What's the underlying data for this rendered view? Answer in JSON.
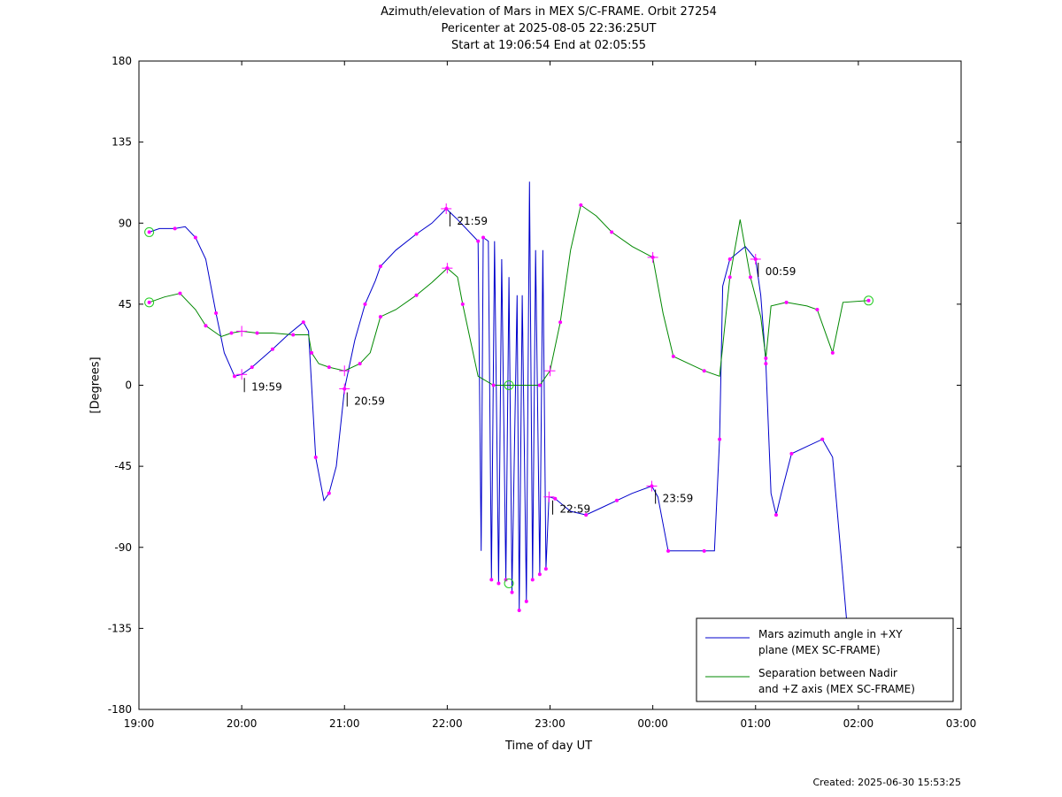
{
  "header": {
    "title_line1": "Azimuth/elevation of Mars in MEX S/C-FRAME.  Orbit 27254",
    "title_line2": "Pericenter at 2025-08-05 22:36:25UT",
    "title_line3": "Start at 19:06:54 End at 02:05:55"
  },
  "footer": {
    "created": "Created: 2025-06-30 15:53:25"
  },
  "chart_data": {
    "type": "line",
    "title": "Azimuth/elevation of Mars in MEX S/C-FRAME.  Orbit 27254",
    "xlabel": "Time of day UT",
    "ylabel": "[Degrees]",
    "xlim_hours": [
      19,
      27
    ],
    "ylim": [
      -180,
      180
    ],
    "x_ticks": [
      "19:00",
      "20:00",
      "21:00",
      "22:00",
      "23:00",
      "00:00",
      "01:00",
      "02:00",
      "03:00"
    ],
    "y_ticks": [
      "180",
      "135",
      "90",
      "45",
      "0",
      "-45",
      "-90",
      "-135",
      "-180"
    ],
    "legend_position": "bottom-right",
    "series": [
      {
        "name": "Mars azimuth angle in +XY plane (MEX SC-FRAME)",
        "legend_line1": "Mars azimuth angle in +XY",
        "legend_line2": "plane (MEX SC-FRAME)",
        "color": "#0000cc",
        "points": [
          [
            19.1,
            85
          ],
          [
            19.2,
            87
          ],
          [
            19.35,
            87
          ],
          [
            19.45,
            88
          ],
          [
            19.55,
            82
          ],
          [
            19.65,
            70
          ],
          [
            19.75,
            40
          ],
          [
            19.83,
            18
          ],
          [
            19.93,
            5
          ],
          [
            20.0,
            6
          ],
          [
            20.1,
            10
          ],
          [
            20.2,
            15
          ],
          [
            20.3,
            20
          ],
          [
            20.45,
            28
          ],
          [
            20.6,
            35
          ],
          [
            20.65,
            30
          ],
          [
            20.72,
            -40
          ],
          [
            20.8,
            -64
          ],
          [
            20.85,
            -60
          ],
          [
            20.92,
            -45
          ],
          [
            21.0,
            -2
          ],
          [
            21.1,
            25
          ],
          [
            21.2,
            45
          ],
          [
            21.3,
            58
          ],
          [
            21.35,
            66
          ],
          [
            21.5,
            75
          ],
          [
            21.7,
            84
          ],
          [
            21.85,
            90
          ],
          [
            21.99,
            98
          ],
          [
            22.1,
            92
          ],
          [
            22.3,
            80
          ],
          [
            22.33,
            -92
          ],
          [
            22.35,
            82
          ],
          [
            22.4,
            80
          ],
          [
            22.43,
            -108
          ],
          [
            22.46,
            80
          ],
          [
            22.5,
            -110
          ],
          [
            22.53,
            70
          ],
          [
            22.57,
            -108
          ],
          [
            22.6,
            60
          ],
          [
            22.63,
            -115
          ],
          [
            22.68,
            50
          ],
          [
            22.7,
            -125
          ],
          [
            22.73,
            50
          ],
          [
            22.77,
            -120
          ],
          [
            22.8,
            113
          ],
          [
            22.83,
            -108
          ],
          [
            22.86,
            75
          ],
          [
            22.9,
            -105
          ],
          [
            22.93,
            75
          ],
          [
            22.96,
            -102
          ],
          [
            22.99,
            -62
          ],
          [
            23.05,
            -63
          ],
          [
            23.2,
            -70
          ],
          [
            23.35,
            -72
          ],
          [
            23.5,
            -68
          ],
          [
            23.65,
            -64
          ],
          [
            23.8,
            -60
          ],
          [
            23.99,
            -56
          ],
          [
            24.05,
            -62
          ],
          [
            24.15,
            -92
          ],
          [
            24.35,
            -92
          ],
          [
            24.5,
            -92
          ],
          [
            24.6,
            -92
          ],
          [
            24.65,
            -30
          ],
          [
            24.68,
            55
          ],
          [
            24.75,
            70
          ],
          [
            24.9,
            77
          ],
          [
            25.0,
            70
          ],
          [
            25.05,
            50
          ],
          [
            25.1,
            12
          ],
          [
            25.15,
            -60
          ],
          [
            25.2,
            -72
          ],
          [
            25.25,
            -60
          ],
          [
            25.35,
            -38
          ],
          [
            25.5,
            -34
          ],
          [
            25.65,
            -30
          ],
          [
            25.75,
            -40
          ],
          [
            25.9,
            -140
          ]
        ],
        "labels": [
          {
            "t": 19.983,
            "v": 6,
            "text": "19:59"
          },
          {
            "t": 20.983,
            "v": -2,
            "text": "20:59"
          },
          {
            "t": 21.983,
            "v": 98,
            "text": "21:59"
          },
          {
            "t": 22.983,
            "v": -62,
            "text": "22:59"
          },
          {
            "t": 23.983,
            "v": -56,
            "text": "23:59"
          },
          {
            "t": 24.983,
            "v": 70,
            "text": "00:59"
          }
        ]
      },
      {
        "name": "Separation between Nadir and +Z axis (MEX SC-FRAME)",
        "legend_line1": "Separation between Nadir",
        "legend_line2": "and +Z axis (MEX SC-FRAME)",
        "color": "#008800",
        "points": [
          [
            19.1,
            46
          ],
          [
            19.25,
            49
          ],
          [
            19.4,
            51
          ],
          [
            19.55,
            42
          ],
          [
            19.65,
            33
          ],
          [
            19.8,
            27
          ],
          [
            19.9,
            29
          ],
          [
            20.0,
            30
          ],
          [
            20.15,
            29
          ],
          [
            20.3,
            29
          ],
          [
            20.5,
            28
          ],
          [
            20.65,
            28
          ],
          [
            20.68,
            18
          ],
          [
            20.75,
            12
          ],
          [
            20.85,
            10
          ],
          [
            21.0,
            8
          ],
          [
            21.15,
            12
          ],
          [
            21.25,
            18
          ],
          [
            21.35,
            38
          ],
          [
            21.5,
            42
          ],
          [
            21.7,
            50
          ],
          [
            21.85,
            57
          ],
          [
            22.0,
            65
          ],
          [
            22.1,
            60
          ],
          [
            22.15,
            45
          ],
          [
            22.3,
            5
          ],
          [
            22.45,
            0
          ],
          [
            22.6,
            0
          ],
          [
            22.9,
            0
          ],
          [
            23.0,
            8
          ],
          [
            23.1,
            35
          ],
          [
            23.2,
            75
          ],
          [
            23.3,
            100
          ],
          [
            23.45,
            94
          ],
          [
            23.6,
            85
          ],
          [
            23.8,
            77
          ],
          [
            24.0,
            71
          ],
          [
            24.1,
            40
          ],
          [
            24.2,
            16
          ],
          [
            24.35,
            12
          ],
          [
            24.5,
            8
          ],
          [
            24.65,
            5
          ],
          [
            24.75,
            60
          ],
          [
            24.85,
            92
          ],
          [
            24.95,
            60
          ],
          [
            25.05,
            38
          ],
          [
            25.1,
            15
          ],
          [
            25.15,
            44
          ],
          [
            25.3,
            46
          ],
          [
            25.5,
            44
          ],
          [
            25.6,
            42
          ],
          [
            25.7,
            26
          ],
          [
            25.75,
            18
          ],
          [
            25.85,
            46
          ],
          [
            26.1,
            47
          ]
        ]
      }
    ]
  }
}
